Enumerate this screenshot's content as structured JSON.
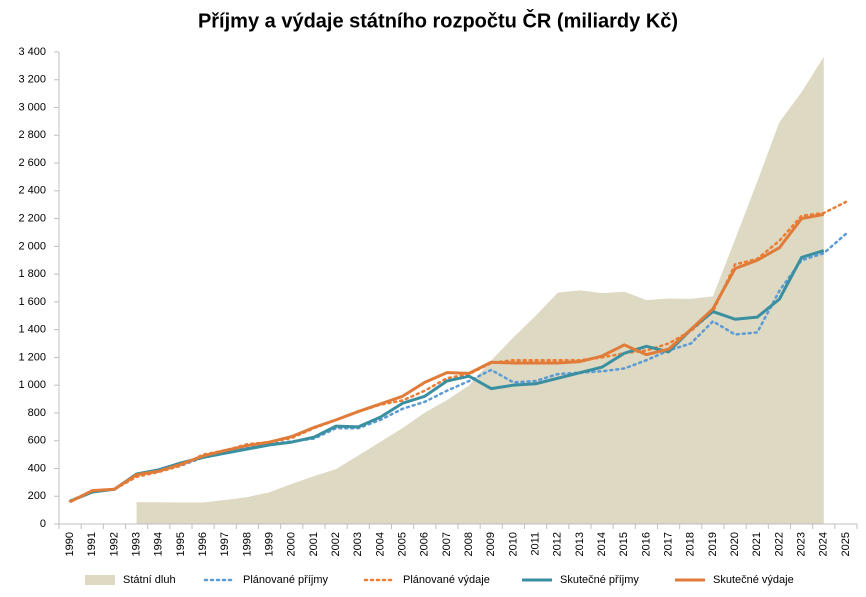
{
  "chart_data": {
    "type": "line",
    "title": "Příjmy a výdaje státního rozpočtu ČR (miliardy Kč)",
    "categories": [
      "1990",
      "1991",
      "1992",
      "1993",
      "1994",
      "1995",
      "1996",
      "1997",
      "1998",
      "1999",
      "2000",
      "2001",
      "2002",
      "2003",
      "2004",
      "2005",
      "2006",
      "2007",
      "2008",
      "2009",
      "2010",
      "2011",
      "2012",
      "2013",
      "2014",
      "2015",
      "2016",
      "2017",
      "2018",
      "2019",
      "2020",
      "2021",
      "2022",
      "2023",
      "2024",
      "2025"
    ],
    "ylim": [
      0,
      3400
    ],
    "yticks": [
      0,
      200,
      400,
      600,
      800,
      {
        "value": 1000,
        "label": "1 000"
      },
      {
        "value": 1200,
        "label": "1 200"
      },
      {
        "value": 1400,
        "label": "1 400"
      },
      {
        "value": 1600,
        "label": "1 600"
      },
      {
        "value": 1800,
        "label": "1 800"
      },
      {
        "value": 2000,
        "label": "2 000"
      },
      {
        "value": 2200,
        "label": "2 200"
      },
      {
        "value": 2400,
        "label": "2 400"
      },
      {
        "value": 2600,
        "label": "2 600"
      },
      {
        "value": 2800,
        "label": "2 800"
      },
      {
        "value": 3000,
        "label": "3 000"
      },
      {
        "value": 3200,
        "label": "3 200"
      },
      {
        "value": 3400,
        "label": "3 400"
      }
    ],
    "grid": false,
    "legend": "bottom",
    "series": [
      {
        "name": "Státní dluh",
        "color": "#ddd9c3",
        "style": "area",
        "values": [
          null,
          null,
          null,
          158,
          157,
          155,
          155,
          173,
          194,
          229,
          289,
          345,
          395,
          493,
          592,
          691,
          802,
          892,
          999,
          1178,
          1344,
          1499,
          1667,
          1683,
          1663,
          1673,
          1613,
          1624,
          1622,
          1640,
          2049,
          2466,
          2895,
          3111,
          3365,
          null
        ]
      },
      {
        "name": "Plánované příjmy",
        "color": "#5b9bd5",
        "style": "dotted",
        "values": [
          165,
          235,
          250,
          350,
          380,
          420,
          480,
          520,
          555,
          575,
          595,
          615,
          690,
          690,
          750,
          830,
          880,
          960,
          1030,
          1110,
          1020,
          1030,
          1080,
          1090,
          1100,
          1120,
          1180,
          1250,
          1300,
          1460,
          1365,
          1380,
          1680,
          1900,
          1950,
          2090
        ]
      },
      {
        "name": "Plánované výdaje",
        "color": "#ed7d31",
        "style": "dotted",
        "values": [
          165,
          240,
          250,
          340,
          375,
          420,
          500,
          530,
          575,
          590,
          620,
          690,
          750,
          810,
          860,
          890,
          960,
          1050,
          1080,
          1160,
          1180,
          1180,
          1180,
          1180,
          1200,
          1230,
          1250,
          1300,
          1390,
          1530,
          1870,
          1910,
          2040,
          2220,
          2240,
          2320
        ]
      },
      {
        "name": "Skutečné příjmy",
        "color": "#3a8fa0",
        "style": "solid",
        "values": [
          165,
          230,
          250,
          360,
          390,
          440,
          480,
          510,
          540,
          570,
          590,
          625,
          705,
          700,
          770,
          870,
          920,
          1030,
          1065,
          975,
          1000,
          1010,
          1050,
          1090,
          1130,
          1230,
          1280,
          1240,
          1400,
          1530,
          1475,
          1490,
          1620,
          1920,
          1970,
          null
        ]
      },
      {
        "name": "Skutečné výdaje",
        "color": "#e07b39",
        "style": "solid",
        "values": [
          160,
          240,
          250,
          355,
          380,
          430,
          490,
          530,
          565,
          590,
          630,
          695,
          750,
          810,
          865,
          920,
          1020,
          1090,
          1085,
          1165,
          1160,
          1160,
          1160,
          1170,
          1210,
          1290,
          1220,
          1260,
          1400,
          1550,
          1840,
          1900,
          1990,
          2200,
          2230,
          null
        ]
      }
    ]
  }
}
